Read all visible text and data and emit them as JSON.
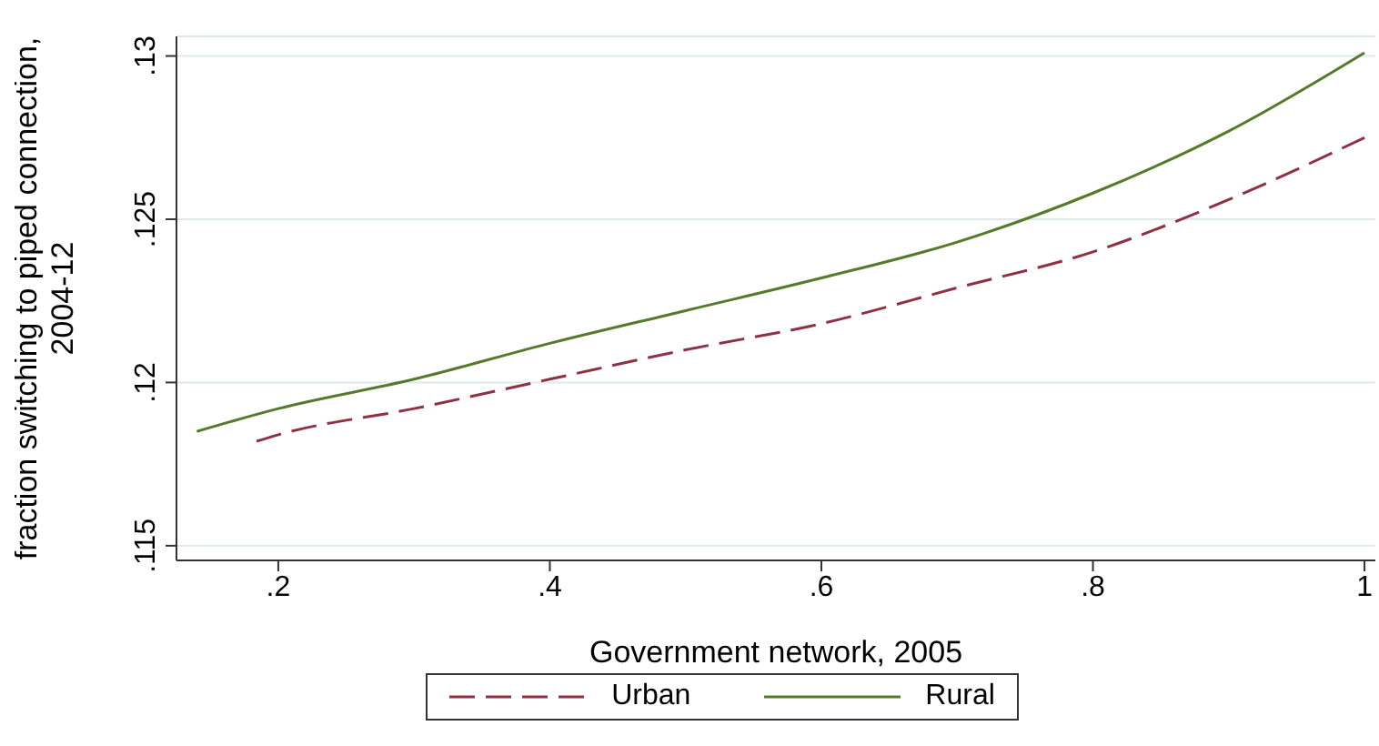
{
  "chart_data": {
    "type": "line",
    "xlabel": "Government network, 2005",
    "ylabel": "fraction switching to piped connection, 2004-12",
    "xlim": [
      0.125,
      1.008
    ],
    "xticks": [
      {
        "value": 0.2,
        "label": ".2"
      },
      {
        "value": 0.4,
        "label": ".4"
      },
      {
        "value": 0.6,
        "label": ".6"
      },
      {
        "value": 0.8,
        "label": ".8"
      },
      1
    ],
    "ylim": [
      0.11455,
      0.1306
    ],
    "yticks": [
      {
        "value": 0.115,
        "label": ".115"
      },
      {
        "value": 0.12,
        "label": ".12"
      },
      {
        "value": 0.125,
        "label": ".125"
      },
      {
        "value": 0.13,
        "label": ".13"
      }
    ],
    "grid": "y",
    "legend": "bottom",
    "marker": "none",
    "series": [
      {
        "name": "Urban",
        "color": "#8f3043",
        "line_style": "dashed",
        "x": [
          0.184,
          0.2,
          0.3,
          0.4,
          0.5,
          0.6,
          0.7,
          0.8,
          0.9,
          1
        ],
        "values": [
          0.1182,
          0.1184,
          0.1192,
          0.1201,
          0.121,
          0.1218,
          0.1229,
          0.124,
          0.1256,
          0.1275
        ]
      },
      {
        "name": "Rural",
        "color": "#557a2a",
        "line_style": "solid",
        "x": [
          0.14,
          0.2,
          0.3,
          0.4,
          0.5,
          0.6,
          0.7,
          0.8,
          0.9,
          1
        ],
        "values": [
          0.1185,
          0.1192,
          0.1201,
          0.1212,
          0.1222,
          0.1232,
          0.1243,
          0.1258,
          0.1277,
          0.1301
        ]
      }
    ]
  }
}
